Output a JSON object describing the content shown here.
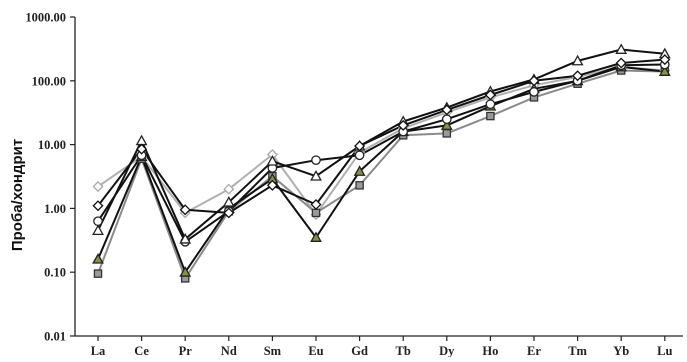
{
  "chart_data": {
    "type": "line",
    "title": "",
    "xlabel": "",
    "ylabel": "Проба/хондрит",
    "yscale": "log",
    "ylim": [
      0.01,
      1000
    ],
    "ytick_labels": [
      "0.01",
      "0.10",
      "1.00",
      "10.00",
      "100.00",
      "1000.00"
    ],
    "yticks": [
      0.01,
      0.1,
      1,
      10,
      100,
      1000
    ],
    "grid": false,
    "legend": "none",
    "categories": [
      "La",
      "Ce",
      "Pr",
      "Nd",
      "Sm",
      "Eu",
      "Gd",
      "Tb",
      "Dy",
      "Ho",
      "Er",
      "Tm",
      "Yb",
      "Lu"
    ],
    "series": [
      {
        "marker": "diamond-open",
        "line_color": "#b0b0b0",
        "marker_stroke": "#a8a8a8",
        "marker_fill": "#ffffff",
        "values": [
          2.2,
          6.5,
          0.85,
          2.0,
          7.0,
          0.8,
          7.5,
          18,
          32,
          55,
          85,
          115,
          165,
          145
        ]
      },
      {
        "marker": "square-gray",
        "line_color": "#8a8a8a",
        "marker_stroke": "#333333",
        "marker_fill": "#9a9a9a",
        "values": [
          0.095,
          6.0,
          0.08,
          0.9,
          3.2,
          0.85,
          2.3,
          14,
          15,
          28,
          55,
          90,
          145,
          140
        ]
      },
      {
        "marker": "triangle-olive",
        "line_color": "#111111",
        "marker_stroke": "#222222",
        "marker_fill": "#8a8f4a",
        "values": [
          0.16,
          6.5,
          0.1,
          1.0,
          2.9,
          0.35,
          3.8,
          16,
          20,
          40,
          75,
          100,
          165,
          140
        ]
      },
      {
        "marker": "circle-open",
        "line_color": "#111111",
        "marker_stroke": "#222222",
        "marker_fill": "#ffffff",
        "values": [
          0.63,
          6.8,
          0.3,
          0.9,
          4.3,
          5.7,
          6.8,
          16,
          25,
          43,
          67,
          100,
          175,
          180
        ]
      },
      {
        "marker": "triangle-open",
        "line_color": "#111111",
        "marker_stroke": "#222222",
        "marker_fill": "#ffffff",
        "values": [
          0.45,
          11.5,
          0.33,
          1.25,
          5.5,
          3.2,
          9.5,
          23,
          38,
          68,
          105,
          205,
          310,
          265
        ]
      },
      {
        "marker": "diamond-open-black",
        "line_color": "#111111",
        "marker_stroke": "#111111",
        "marker_fill": "#ffffff",
        "values": [
          1.1,
          8.5,
          0.95,
          0.85,
          2.3,
          1.15,
          9.5,
          20,
          35,
          60,
          100,
          120,
          190,
          215
        ]
      }
    ]
  }
}
